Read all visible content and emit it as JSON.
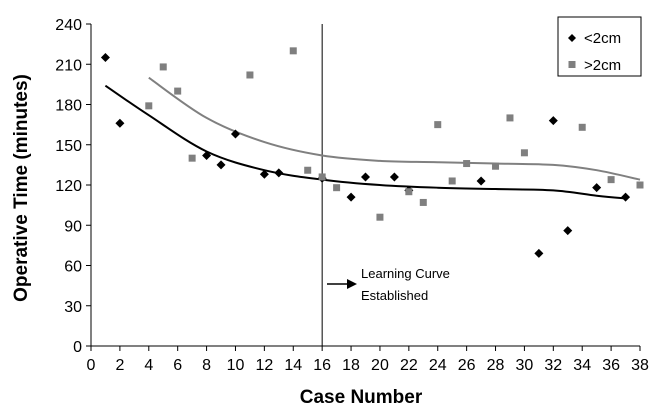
{
  "chart_data": {
    "type": "scatter",
    "title": "",
    "xlabel": "Case Number",
    "ylabel": "Operative Time (minutes)",
    "xlim": [
      0,
      38
    ],
    "ylim": [
      0,
      240
    ],
    "xticks": [
      0,
      2,
      4,
      6,
      8,
      10,
      12,
      14,
      16,
      18,
      20,
      22,
      24,
      26,
      28,
      30,
      32,
      34,
      36,
      38
    ],
    "yticks": [
      0,
      30,
      60,
      90,
      120,
      150,
      180,
      210,
      240
    ],
    "grid": false,
    "legend_position": "top-right",
    "series": [
      {
        "name": "<2cm",
        "marker": "diamond",
        "color": "#000000",
        "points": [
          [
            1,
            215
          ],
          [
            2,
            166
          ],
          [
            8,
            142
          ],
          [
            9,
            135
          ],
          [
            10,
            158
          ],
          [
            12,
            128
          ],
          [
            13,
            129
          ],
          [
            16,
            125
          ],
          [
            18,
            111
          ],
          [
            19,
            126
          ],
          [
            21,
            126
          ],
          [
            22,
            116
          ],
          [
            27,
            123
          ],
          [
            31,
            69
          ],
          [
            32,
            168
          ],
          [
            33,
            86
          ],
          [
            35,
            118
          ],
          [
            37,
            111
          ]
        ],
        "trend": [
          [
            1,
            194
          ],
          [
            4,
            172
          ],
          [
            8,
            145
          ],
          [
            12,
            131
          ],
          [
            16,
            124
          ],
          [
            20,
            120
          ],
          [
            24,
            118
          ],
          [
            28,
            117
          ],
          [
            32,
            116
          ],
          [
            35,
            112
          ],
          [
            37,
            110
          ]
        ]
      },
      {
        "name": ">2cm",
        "marker": "square",
        "color": "#7f7f7f",
        "points": [
          [
            4,
            179
          ],
          [
            5,
            208
          ],
          [
            6,
            190
          ],
          [
            7,
            140
          ],
          [
            11,
            202
          ],
          [
            14,
            220
          ],
          [
            15,
            131
          ],
          [
            16,
            126
          ],
          [
            17,
            118
          ],
          [
            20,
            96
          ],
          [
            22,
            115
          ],
          [
            23,
            107
          ],
          [
            24,
            165
          ],
          [
            25,
            123
          ],
          [
            26,
            136
          ],
          [
            28,
            134
          ],
          [
            29,
            170
          ],
          [
            30,
            144
          ],
          [
            34,
            163
          ],
          [
            36,
            124
          ],
          [
            38,
            120
          ]
        ],
        "trend": [
          [
            4,
            200
          ],
          [
            8,
            170
          ],
          [
            12,
            152
          ],
          [
            16,
            142
          ],
          [
            20,
            138
          ],
          [
            24,
            137
          ],
          [
            28,
            136
          ],
          [
            32,
            135
          ],
          [
            35,
            131
          ],
          [
            38,
            124
          ]
        ]
      }
    ],
    "vertical_line_x": 16,
    "annotation": {
      "lines": [
        "Learning Curve",
        "Established"
      ]
    }
  }
}
